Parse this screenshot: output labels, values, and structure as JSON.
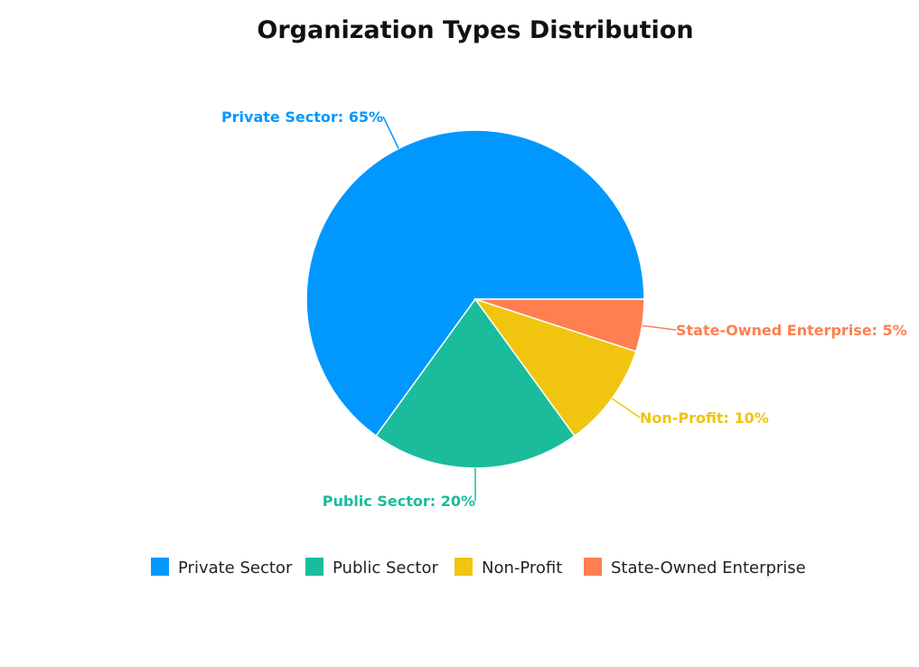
{
  "chart_data": {
    "type": "pie",
    "title": "Organization Types Distribution",
    "categories": [
      "Private Sector",
      "Public Sector",
      "Non-Profit",
      "State-Owned Enterprise"
    ],
    "values": [
      65,
      20,
      10,
      5
    ],
    "unit": "%",
    "colors": [
      "#0098ff",
      "#1abc9c",
      "#f1c40f",
      "#ff7f50"
    ],
    "data_labels": [
      "Private Sector: 65%",
      "Public Sector: 20%",
      "Non-Profit: 10%",
      "State-Owned Enterprise: 5%"
    ],
    "legend": {
      "position": "bottom",
      "entries": [
        "Private Sector",
        "Public Sector",
        "Non-Profit",
        "State-Owned Enterprise"
      ]
    }
  }
}
